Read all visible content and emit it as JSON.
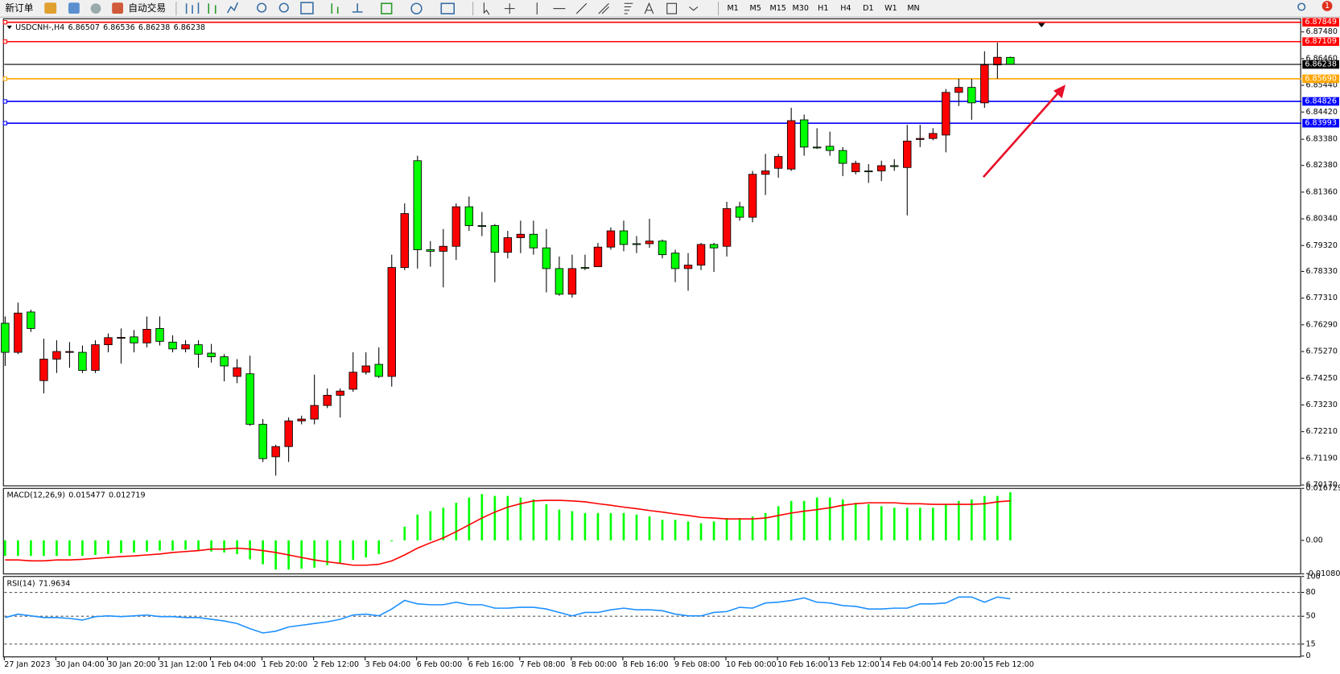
{
  "toolbar": {
    "new_order": "新订单",
    "auto_trading": "自动交易",
    "timeframes": [
      "M1",
      "M5",
      "M15",
      "M30",
      "H1",
      "H4",
      "D1",
      "W1",
      "MN"
    ],
    "badge": "1"
  },
  "chart_data": [
    {
      "type": "candlestick",
      "symbol": "USDCNH-,H4",
      "up_color": "#ff0000",
      "down_color": "#00ff00",
      "grid": false,
      "categories": [
        "27 Jan 2023",
        null,
        null,
        null,
        "30 Jan 04:00",
        null,
        null,
        null,
        "30 Jan 20:00",
        null,
        null,
        null,
        "31 Jan 12:00",
        null,
        null,
        null,
        "1 Feb 04:00",
        null,
        null,
        null,
        "1 Feb 20:00",
        null,
        null,
        null,
        "2 Feb 12:00",
        null,
        null,
        null,
        "3 Feb 04:00",
        null,
        null,
        null,
        "6 Feb 00:00",
        null,
        null,
        null,
        "6 Feb 16:00",
        null,
        null,
        null,
        "7 Feb 08:00",
        null,
        null,
        null,
        "8 Feb 00:00",
        null,
        null,
        null,
        "8 Feb 16:00",
        null,
        null,
        null,
        "9 Feb 08:00",
        null,
        null,
        null,
        "10 Feb 00:00",
        null,
        null,
        null,
        "10 Feb 16:00",
        null,
        null,
        null,
        "13 Feb 12:00",
        null,
        null,
        null,
        "14 Feb 04:00",
        null,
        null,
        null,
        "14 Feb 20:00",
        null,
        null,
        null,
        "15 Feb 12:00",
        null,
        null
      ],
      "open": [
        6.7635,
        6.7524,
        6.7678,
        6.7416,
        6.7498,
        6.7524,
        6.7524,
        6.7455,
        6.7553,
        6.758,
        6.7583,
        6.756,
        6.7615,
        6.7563,
        6.7537,
        6.7553,
        6.7521,
        6.7507,
        6.7432,
        6.7442,
        6.7249,
        6.7125,
        6.7164,
        6.7262,
        6.7269,
        6.7321,
        6.736,
        6.7383,
        6.7448,
        6.7478,
        6.7432,
        6.7848,
        6.8256,
        6.7916,
        6.791,
        6.7929,
        6.808,
        6.8008,
        6.8008,
        6.7906,
        6.7962,
        6.7975,
        6.7923,
        6.7844,
        6.7746,
        6.7848,
        6.7851,
        6.7926,
        6.7988,
        6.7939,
        6.7939,
        6.7949,
        6.7903,
        6.7844,
        6.7857,
        6.7936,
        6.7929,
        6.808,
        6.804,
        6.8204,
        6.8227,
        6.8224,
        6.8412,
        6.8308,
        6.8311,
        6.8295,
        6.8214,
        6.8217,
        6.8217,
        6.8237,
        6.823,
        6.8337,
        6.8341,
        6.8354,
        6.8517,
        6.8536,
        6.8477,
        6.8622,
        6.86507
      ],
      "high": [
        6.7661,
        6.7714,
        6.7687,
        6.7576,
        6.757,
        6.7563,
        6.755,
        6.757,
        6.7596,
        6.7615,
        6.7609,
        6.7661,
        6.7661,
        6.7589,
        6.757,
        6.757,
        6.7556,
        6.7517,
        6.7498,
        6.7511,
        6.7269,
        6.7171,
        6.7275,
        6.7282,
        6.7439,
        6.7386,
        6.7386,
        6.7524,
        6.7524,
        6.7543,
        6.7897,
        6.8093,
        6.8275,
        6.7949,
        6.7995,
        6.8093,
        6.8119,
        6.806,
        6.8014,
        6.7988,
        6.8027,
        6.8027,
        6.7995,
        6.789,
        6.7897,
        6.7897,
        6.7942,
        6.8001,
        6.8027,
        6.7968,
        6.8034,
        6.7955,
        6.7916,
        6.7903,
        6.7942,
        6.7942,
        6.8099,
        6.8099,
        6.8217,
        6.8282,
        6.8282,
        6.8458,
        6.8432,
        6.838,
        6.8367,
        6.8308,
        6.8256,
        6.8243,
        6.8256,
        6.8262,
        6.8393,
        6.8393,
        6.838,
        6.853,
        6.8569,
        6.8569,
        6.8674,
        6.8707,
        6.86536
      ],
      "low": [
        6.7472,
        6.7517,
        6.7602,
        6.7367,
        6.7445,
        6.7465,
        6.7445,
        6.7445,
        6.7524,
        6.7481,
        6.7524,
        6.7543,
        6.755,
        6.7524,
        6.7524,
        6.7465,
        6.7485,
        6.7413,
        6.7406,
        6.7243,
        6.7105,
        6.7053,
        6.7105,
        6.7249,
        6.7249,
        6.7311,
        6.7275,
        6.7373,
        6.7439,
        6.7426,
        6.7393,
        6.7838,
        6.7844,
        6.7851,
        6.7772,
        6.7877,
        6.7988,
        6.7968,
        6.7792,
        6.7883,
        6.7903,
        6.7897,
        6.7753,
        6.774,
        6.7733,
        6.7838,
        6.7851,
        6.7916,
        6.791,
        6.7903,
        6.7923,
        6.7883,
        6.7792,
        6.7759,
        6.7838,
        6.7831,
        6.789,
        6.8027,
        6.8021,
        6.8125,
        6.8191,
        6.8217,
        6.8275,
        6.8301,
        6.8275,
        6.8197,
        6.8204,
        6.8171,
        6.8178,
        6.8217,
        6.8047,
        6.8308,
        6.8334,
        6.8288,
        6.8465,
        6.8412,
        6.8458,
        6.8569,
        6.86238
      ],
      "close": [
        6.7524,
        6.7674,
        6.7615,
        6.7498,
        6.7527,
        6.7527,
        6.7455,
        6.7553,
        6.758,
        6.7581,
        6.756,
        6.7612,
        6.7566,
        6.7537,
        6.7553,
        6.7517,
        6.7507,
        6.7472,
        6.7465,
        6.7249,
        6.7118,
        6.7164,
        6.7262,
        6.7269,
        6.7321,
        6.736,
        6.7376,
        6.7448,
        6.7472,
        6.7432,
        6.7848,
        6.8054,
        6.7916,
        6.791,
        6.7929,
        6.808,
        6.8008,
        6.8007,
        6.7906,
        6.7962,
        6.7975,
        6.7923,
        6.7844,
        6.7746,
        6.7844,
        6.7847,
        6.7926,
        6.7988,
        6.7936,
        6.7938,
        6.7949,
        6.7897,
        6.7844,
        6.7857,
        6.7936,
        6.7923,
        6.8073,
        6.804,
        6.8204,
        6.8217,
        6.8272,
        6.8409,
        6.8308,
        6.8307,
        6.8295,
        6.8246,
        6.8246,
        6.8216,
        6.8237,
        6.8236,
        6.8331,
        6.8341,
        6.836,
        6.8517,
        6.8536,
        6.8477,
        6.8622,
        6.8651,
        6.86238
      ],
      "hlines": [
        {
          "value": 6.87849,
          "label": "6.87849",
          "color": "#ff0000"
        },
        {
          "value": 6.87109,
          "label": "6.87109",
          "color": "#ff0000"
        },
        {
          "value": 6.8569,
          "label": "6.85690",
          "color": "#ffa500"
        },
        {
          "value": 6.84826,
          "label": "6.84826",
          "color": "#0000ff"
        },
        {
          "value": 6.83993,
          "label": "6.83993",
          "color": "#0000ff"
        }
      ],
      "ylim": [
        6.7014,
        6.8798
      ],
      "yticks": [
        {
          "value": 6.8748,
          "label": "6.87480"
        },
        {
          "value": 6.8646,
          "label": "6.86460"
        },
        {
          "value": 6.8544,
          "label": "6.85440"
        },
        {
          "value": 6.8442,
          "label": "6.84420"
        },
        {
          "value": 6.8338,
          "label": "6.83380"
        },
        {
          "value": 6.8238,
          "label": "6.82380"
        },
        {
          "value": 6.8136,
          "label": "6.81360"
        },
        {
          "value": 6.8034,
          "label": "6.80340"
        },
        {
          "value": 6.7932,
          "label": "6.79320"
        },
        {
          "value": 6.7833,
          "label": "6.78330"
        },
        {
          "value": 6.7731,
          "label": "6.77310"
        },
        {
          "value": 6.7629,
          "label": "6.76290"
        },
        {
          "value": 6.7527,
          "label": "6.75270"
        },
        {
          "value": 6.7425,
          "label": "6.74250"
        },
        {
          "value": 6.7323,
          "label": "6.73230"
        },
        {
          "value": 6.7221,
          "label": "6.72210"
        },
        {
          "value": 6.7119,
          "label": "6.71190"
        },
        {
          "value": 6.7017,
          "label": "6.70170"
        }
      ]
    },
    {
      "type": "macd",
      "title": "MACD(12,26,9)",
      "histogram": {
        "color": "#00ff00",
        "values": [
          -0.005,
          -0.005,
          -0.005,
          -0.005,
          -0.005,
          -0.005,
          -0.005,
          -0.0047,
          -0.0044,
          -0.0041,
          -0.0039,
          -0.0036,
          -0.0033,
          -0.0033,
          -0.003,
          -0.0033,
          -0.0036,
          -0.0039,
          -0.0044,
          -0.0061,
          -0.0077,
          -0.0094,
          -0.0094,
          -0.0091,
          -0.0088,
          -0.008,
          -0.0072,
          -0.0063,
          -0.0055,
          -0.0044,
          -0.0003,
          0.0044,
          0.0083,
          0.0094,
          0.0105,
          0.0121,
          0.0138,
          0.0149,
          0.0143,
          0.0143,
          0.0138,
          0.0132,
          0.0116,
          0.0099,
          0.0094,
          0.0088,
          0.0088,
          0.0088,
          0.0088,
          0.0083,
          0.0077,
          0.0066,
          0.0066,
          0.0061,
          0.0055,
          0.0061,
          0.0072,
          0.0072,
          0.0077,
          0.0088,
          0.011,
          0.0127,
          0.0127,
          0.0138,
          0.0138,
          0.0132,
          0.0121,
          0.0116,
          0.011,
          0.0105,
          0.0105,
          0.0105,
          0.0105,
          0.0116,
          0.0127,
          0.0132,
          0.0143,
          0.0143,
          0.015477
        ]
      },
      "signal": {
        "color": "#ff0000",
        "values": [
          -0.0063,
          -0.0063,
          -0.0066,
          -0.0066,
          -0.0063,
          -0.0063,
          -0.0061,
          -0.0058,
          -0.0055,
          -0.0052,
          -0.005,
          -0.0047,
          -0.0044,
          -0.0039,
          -0.0036,
          -0.0033,
          -0.0028,
          -0.0028,
          -0.0025,
          -0.0028,
          -0.0033,
          -0.0039,
          -0.0047,
          -0.0055,
          -0.0063,
          -0.0069,
          -0.0074,
          -0.008,
          -0.008,
          -0.0077,
          -0.0066,
          -0.0047,
          -0.0025,
          -0.0008,
          0.0008,
          0.0028,
          0.005,
          0.0072,
          0.0091,
          0.0107,
          0.0118,
          0.0127,
          0.0129,
          0.0129,
          0.0127,
          0.0124,
          0.0118,
          0.0113,
          0.0107,
          0.0102,
          0.0096,
          0.0091,
          0.0085,
          0.008,
          0.0074,
          0.0072,
          0.0069,
          0.0069,
          0.0069,
          0.0072,
          0.008,
          0.0088,
          0.0094,
          0.0099,
          0.0105,
          0.0113,
          0.0118,
          0.0121,
          0.0121,
          0.0121,
          0.0118,
          0.0118,
          0.0116,
          0.0116,
          0.0116,
          0.0116,
          0.0118,
          0.0124,
          0.012719
        ]
      },
      "ylim": [
        -0.010802,
        0.016729
      ],
      "yticks": [
        0.016729,
        {
          "value": 0,
          "label": "0.00"
        },
        -0.010802
      ]
    },
    {
      "type": "line",
      "title": "RSI(14)",
      "color": "#1e90ff",
      "values": [
        48.4,
        52.7,
        50.5,
        48.4,
        48.4,
        47.3,
        45.2,
        49.5,
        50.5,
        49.5,
        50.5,
        51.6,
        49.5,
        49.5,
        48.4,
        48.4,
        46.2,
        44.1,
        40.9,
        34.4,
        29.0,
        31.2,
        36.6,
        38.7,
        40.9,
        43.0,
        46.2,
        51.6,
        52.7,
        50.5,
        59.1,
        69.9,
        65.6,
        64.5,
        64.5,
        67.7,
        64.5,
        64.5,
        60.2,
        60.2,
        61.3,
        61.3,
        59.1,
        54.8,
        50.5,
        54.8,
        54.8,
        58.1,
        60.2,
        58.1,
        58.1,
        57.0,
        52.7,
        50.5,
        50.5,
        54.8,
        55.9,
        61.3,
        60.2,
        66.7,
        67.7,
        69.9,
        73.1,
        67.7,
        66.7,
        63.4,
        62.4,
        59.1,
        59.1,
        60.2,
        60.2,
        65.6,
        65.6,
        66.7,
        74.2,
        74.2,
        67.7,
        74.2,
        71.9634
      ],
      "ylim": [
        0,
        100
      ],
      "yticks": [
        100,
        80,
        50,
        15,
        0
      ]
    }
  ]
}
